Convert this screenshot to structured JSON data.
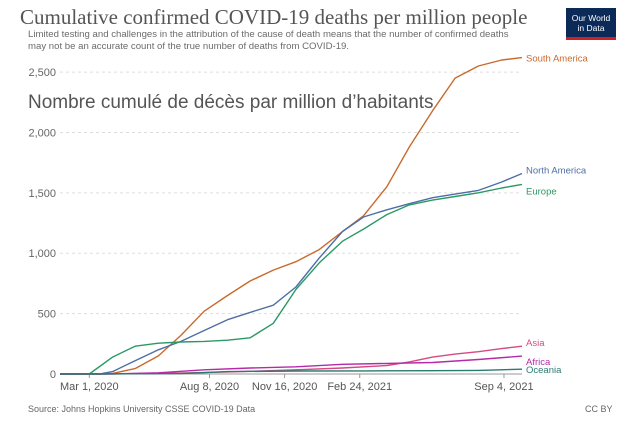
{
  "header": {
    "title": "Cumulative confirmed COVID-19 deaths per million people",
    "subtitle_line1": "Limited testing and challenges in the attribution of the cause of death means that the number of confirmed deaths",
    "subtitle_line2": "may not be an accurate count of the true number of deaths from COVID-19."
  },
  "overlay_text": "Nombre cumulé de décès par million d’habitants",
  "logo": {
    "line1": "Our World",
    "line2": "in Data"
  },
  "footer": {
    "source": "Source: Johns Hopkins University CSSE COVID-19 Data",
    "license": "CC BY"
  },
  "colors": {
    "South America": "#c96a2d",
    "North America": "#4f6ea6",
    "Europe": "#2a9a63",
    "Asia": "#d54a80",
    "Africa": "#b52aa8",
    "Oceania": "#2b7a73"
  },
  "chart_data": {
    "type": "line",
    "title": "Cumulative confirmed COVID-19 deaths per million people",
    "xlabel": "",
    "ylabel": "",
    "ylim": [
      0,
      2600
    ],
    "yticks": [
      0,
      500,
      1000,
      1500,
      2000,
      2500
    ],
    "ytick_labels": [
      "0",
      "500",
      "1,000",
      "1,500",
      "2,000",
      "2,500"
    ],
    "xlim": [
      "2020-01-22",
      "2021-09-28"
    ],
    "xticks": [
      "2020-03-01",
      "2020-08-08",
      "2020-11-16",
      "2021-02-24",
      "2021-09-04"
    ],
    "xtick_labels": [
      "Mar 1, 2020",
      "Aug 8, 2020",
      "Nov 16, 2020",
      "Feb 24, 2021",
      "Sep 4, 2021"
    ],
    "grid": "horizontal dashed",
    "legend": "labels at line ends (right)",
    "series": [
      {
        "name": "South America",
        "x": [
          "2020-01-22",
          "2020-03-20",
          "2020-04-01",
          "2020-05-01",
          "2020-06-01",
          "2020-07-01",
          "2020-08-01",
          "2020-09-01",
          "2020-10-01",
          "2020-11-01",
          "2020-12-01",
          "2021-01-01",
          "2021-02-01",
          "2021-03-01",
          "2021-04-01",
          "2021-05-01",
          "2021-06-01",
          "2021-07-01",
          "2021-08-01",
          "2021-09-01",
          "2021-09-28"
        ],
        "y": [
          0,
          0,
          5,
          45,
          150,
          320,
          520,
          650,
          770,
          860,
          930,
          1030,
          1180,
          1310,
          1550,
          1880,
          2180,
          2450,
          2550,
          2600,
          2620
        ]
      },
      {
        "name": "North America",
        "x": [
          "2020-01-22",
          "2020-03-15",
          "2020-04-01",
          "2020-05-01",
          "2020-06-01",
          "2020-07-01",
          "2020-08-01",
          "2020-09-01",
          "2020-10-01",
          "2020-11-01",
          "2020-12-01",
          "2021-01-01",
          "2021-02-01",
          "2021-03-01",
          "2021-04-01",
          "2021-05-01",
          "2021-06-01",
          "2021-07-01",
          "2021-08-01",
          "2021-09-01",
          "2021-09-28"
        ],
        "y": [
          0,
          0,
          20,
          110,
          200,
          270,
          360,
          450,
          510,
          570,
          720,
          960,
          1180,
          1300,
          1360,
          1410,
          1460,
          1490,
          1520,
          1590,
          1660
        ]
      },
      {
        "name": "Europe",
        "x": [
          "2020-01-22",
          "2020-03-01",
          "2020-04-01",
          "2020-05-01",
          "2020-06-01",
          "2020-07-01",
          "2020-08-01",
          "2020-09-01",
          "2020-10-01",
          "2020-11-01",
          "2020-12-01",
          "2021-01-01",
          "2021-02-01",
          "2021-03-01",
          "2021-04-01",
          "2021-05-01",
          "2021-06-01",
          "2021-07-01",
          "2021-08-01",
          "2021-09-01",
          "2021-09-28"
        ],
        "y": [
          0,
          0,
          140,
          230,
          255,
          265,
          270,
          280,
          300,
          420,
          700,
          920,
          1100,
          1200,
          1320,
          1400,
          1440,
          1470,
          1500,
          1540,
          1570
        ]
      },
      {
        "name": "Asia",
        "x": [
          "2020-01-22",
          "2020-04-01",
          "2020-06-01",
          "2020-08-01",
          "2020-10-01",
          "2020-12-01",
          "2021-02-01",
          "2021-04-01",
          "2021-05-01",
          "2021-06-01",
          "2021-07-01",
          "2021-08-01",
          "2021-09-01",
          "2021-09-28"
        ],
        "y": [
          0,
          1,
          5,
          12,
          22,
          35,
          50,
          70,
          100,
          140,
          165,
          185,
          210,
          230
        ]
      },
      {
        "name": "Africa",
        "x": [
          "2020-01-22",
          "2020-04-01",
          "2020-06-01",
          "2020-08-01",
          "2020-10-01",
          "2020-12-01",
          "2021-02-01",
          "2021-04-01",
          "2021-06-01",
          "2021-08-01",
          "2021-09-28"
        ],
        "y": [
          0,
          1,
          10,
          35,
          50,
          60,
          80,
          88,
          95,
          120,
          148
        ]
      },
      {
        "name": "Oceania",
        "x": [
          "2020-01-22",
          "2020-04-01",
          "2020-07-01",
          "2020-09-01",
          "2020-12-01",
          "2021-03-01",
          "2021-06-01",
          "2021-08-01",
          "2021-09-28"
        ],
        "y": [
          0,
          1,
          3,
          20,
          25,
          26,
          27,
          30,
          40
        ]
      }
    ]
  }
}
